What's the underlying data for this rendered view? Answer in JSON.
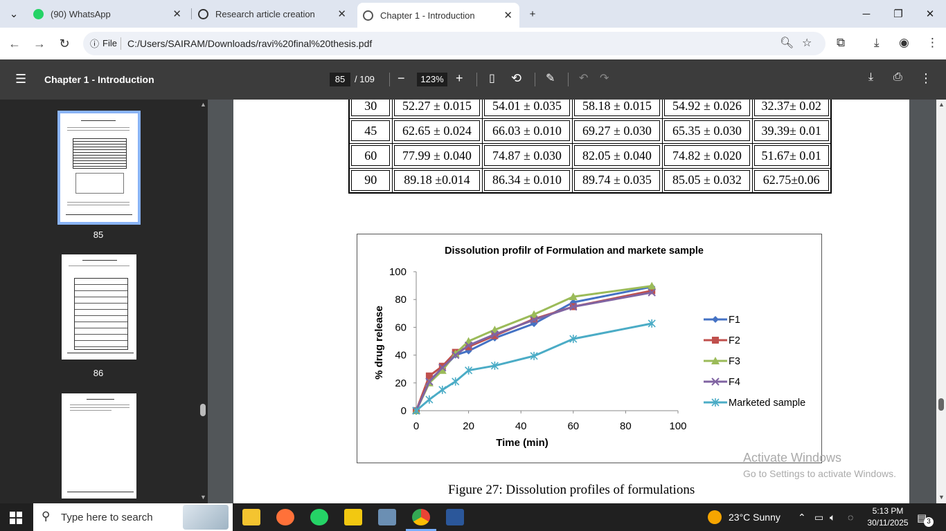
{
  "browser": {
    "tabs": [
      {
        "label": "(90) WhatsApp",
        "icon": "whatsapp-icon"
      },
      {
        "label": "Research article creation",
        "icon": "openai-icon"
      },
      {
        "label": "Chapter 1 - Introduction",
        "icon": "chrome-globe-icon"
      }
    ],
    "file_label": "File",
    "url": "C:/Users/SAIRAM/Downloads/ravi%20final%20thesis.pdf"
  },
  "pdf": {
    "title": "Chapter 1 - Introduction",
    "current_page": "85",
    "total_pages": "/ 109",
    "zoom": "123%"
  },
  "thumbnails": [
    {
      "page": "85",
      "selected": true
    },
    {
      "page": "86",
      "selected": false
    }
  ],
  "table": {
    "rows": [
      [
        "30",
        "52.27 ± 0.015",
        "54.01 ± 0.035",
        "58.18 ± 0.015",
        "54.92 ± 0.026",
        "32.37± 0.02"
      ],
      [
        "45",
        "62.65 ± 0.024",
        "66.03 ± 0.010",
        "69.27 ± 0.030",
        "65.35 ± 0.030",
        "39.39± 0.01"
      ],
      [
        "60",
        "77.99 ± 0.040",
        "74.87 ± 0.030",
        "82.05 ± 0.040",
        "74.82 ± 0.020",
        "51.67± 0.01"
      ],
      [
        "90",
        "89.18 ±0.014",
        "86.34 ± 0.010",
        "89.74 ± 0.035",
        "85.05 ± 0.032",
        "62.75±0.06"
      ]
    ]
  },
  "chart_data": {
    "type": "line",
    "title": "Dissolution profilr of Formulation and markete sample",
    "xlabel": "Time (min)",
    "ylabel": "% drug release",
    "xlim": [
      0,
      100
    ],
    "ylim": [
      0,
      100
    ],
    "xticks": [
      "0",
      "20",
      "40",
      "60",
      "80",
      "100"
    ],
    "yticks": [
      "0",
      "20",
      "40",
      "60",
      "80",
      "100"
    ],
    "x": [
      0,
      5,
      10,
      15,
      20,
      30,
      45,
      60,
      90
    ],
    "legend": "right",
    "series": [
      {
        "name": "F1",
        "color": "#4472c4",
        "marker": "diamond",
        "values": [
          0,
          22,
          30,
          40,
          43,
          52.27,
          62.65,
          77.99,
          89.18
        ]
      },
      {
        "name": "F2",
        "color": "#c0504d",
        "marker": "square",
        "values": [
          0,
          25,
          32,
          42,
          46,
          54.01,
          66.03,
          74.87,
          86.34
        ]
      },
      {
        "name": "F3",
        "color": "#9bbb59",
        "marker": "triangle",
        "values": [
          0,
          20,
          29,
          41,
          50,
          58.18,
          69.27,
          82.05,
          89.74
        ]
      },
      {
        "name": "F4",
        "color": "#8064a2",
        "marker": "x",
        "values": [
          0,
          21,
          31,
          40,
          47,
          54.92,
          65.35,
          74.82,
          85.05
        ]
      },
      {
        "name": "Marketed sample",
        "color": "#4bacc6",
        "marker": "star",
        "values": [
          0,
          8,
          15,
          21,
          29,
          32.37,
          39.39,
          51.67,
          62.75
        ]
      }
    ]
  },
  "caption": "Figure 27: Dissolution profiles of formulations",
  "watermark": {
    "line1": "Activate Windows",
    "line2": "Go to Settings to activate Windows."
  },
  "taskbar": {
    "search_placeholder": "Type here to search",
    "weather": "23°C  Sunny",
    "time": "5:13 PM",
    "date": "30/11/2025",
    "notifications": "3"
  }
}
